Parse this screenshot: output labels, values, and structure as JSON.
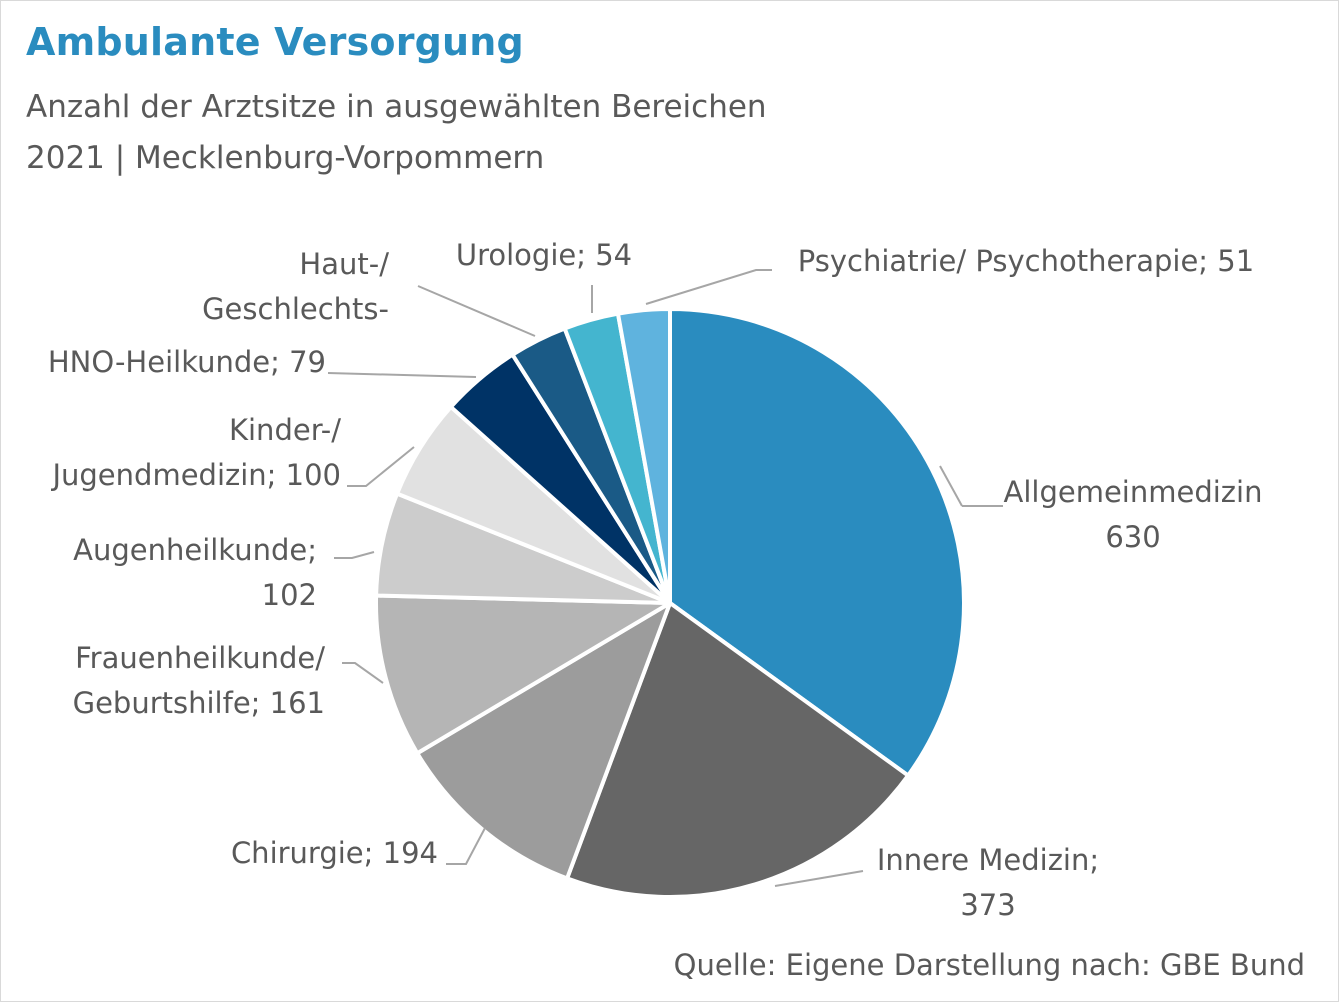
{
  "header": {
    "title": "Ambulante Versorgung",
    "subtitle_line1": "Anzahl der Arztsitze in ausgewählten Bereichen",
    "subtitle_line2": "2021 | Mecklenburg-Vorpommern"
  },
  "footer": {
    "source": "Quelle: Eigene Darstellung nach: GBE Bund"
  },
  "chart_data": {
    "type": "pie",
    "start": "12 o'clock",
    "direction": "clockwise",
    "legend": "none",
    "data_labels": "outside with leader lines",
    "slices": [
      {
        "category": "Allgemeinmedizin",
        "value": 630,
        "color": "#2a8cbf",
        "label": [
          "Allgemeinmedizin",
          "630"
        ]
      },
      {
        "category": "Innere Medizin",
        "value": 373,
        "color": "#666666",
        "label": [
          "Innere Medizin;",
          "373"
        ]
      },
      {
        "category": "Chirurgie",
        "value": 194,
        "color": "#9c9c9c",
        "label": [
          "Chirurgie; 194"
        ]
      },
      {
        "category": "Frauenheilkunde/ Geburtshilfe",
        "value": 161,
        "color": "#b5b5b5",
        "label": [
          "Frauenheilkunde/",
          "Geburtshilfe; 161"
        ]
      },
      {
        "category": "Augenheilkunde",
        "value": 102,
        "color": "#cccccc",
        "label": [
          "Augenheilkunde;",
          "102"
        ]
      },
      {
        "category": "Kinder-/ Jugendmedizin",
        "value": 100,
        "color": "#e1e1e1",
        "label": [
          "Kinder-/",
          "Jugendmedizin; 100"
        ]
      },
      {
        "category": "HNO-Heilkunde",
        "value": 79,
        "color": "#003366",
        "label": [
          "HNO-Heilkunde; 79"
        ]
      },
      {
        "category": "Haut-/ Geschlechts-",
        "value": 57,
        "color": "#1a5a86",
        "label": [
          "Haut-/",
          "Geschlechts-"
        ]
      },
      {
        "category": "Urologie",
        "value": 54,
        "color": "#44b5cf",
        "label": [
          "Urologie; 54"
        ]
      },
      {
        "category": "Psychiatrie/ Psychotherapie",
        "value": 51,
        "color": "#5fb3de",
        "label": [
          "Psychiatrie/ Psychotherapie; 51"
        ]
      }
    ]
  }
}
